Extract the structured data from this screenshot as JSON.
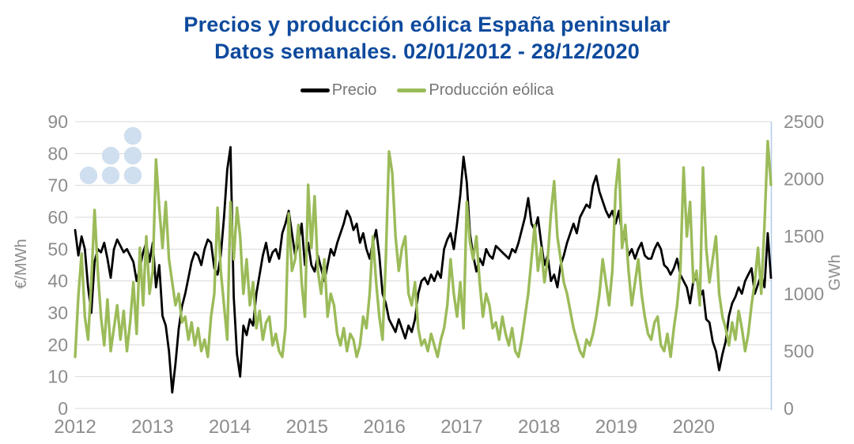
{
  "title": {
    "line1": "Precios y producción eólica España peninsular",
    "line2": "Datos semanales. 02/01/2012 - 28/12/2020"
  },
  "watermark": {
    "name": "dots-logo",
    "color": "#cfdfef",
    "rows": [
      1,
      2,
      3
    ]
  },
  "colors": {
    "title": "#0e4a9d",
    "gridline": "#d9d9d9",
    "right_axis_line": "#b7cce7",
    "tick_label": "#8c8c8c",
    "legend_text": "#767676"
  },
  "chart_data": {
    "type": "line",
    "title": "Precios y producción eólica España peninsular. Datos semanales. 02/01/2012 - 28/12/2020",
    "grid": true,
    "legend_position": "top",
    "x_ticks": [
      "2012",
      "2013",
      "2014",
      "2015",
      "2016",
      "2017",
      "2018",
      "2019",
      "2020"
    ],
    "x_range": [
      2012,
      2021
    ],
    "points_per_year": 24,
    "y_left": {
      "label": "€/MWh",
      "range": [
        0,
        90
      ],
      "ticks": [
        "0",
        "10",
        "20",
        "30",
        "40",
        "50",
        "60",
        "70",
        "80",
        "90"
      ]
    },
    "y_right": {
      "label": "GWh",
      "range": [
        0,
        2500
      ],
      "ticks": [
        "0",
        "500",
        "1000",
        "1500",
        "2000",
        "2500"
      ]
    },
    "series": [
      {
        "name": "Precio",
        "axis": "left",
        "color": "#000000",
        "width": 2.8,
        "values": [
          56,
          48,
          54,
          50,
          38,
          30,
          46,
          50,
          49,
          52,
          47,
          41,
          50,
          53,
          51,
          49,
          50,
          48,
          46,
          40,
          44,
          49,
          52,
          46,
          52,
          38,
          45,
          29,
          26,
          18,
          5,
          14,
          25,
          32,
          36,
          41,
          46,
          49,
          48,
          45,
          50,
          53,
          52,
          44,
          42,
          48,
          60,
          75,
          82,
          35,
          17,
          10,
          26,
          23,
          28,
          26,
          36,
          42,
          48,
          52,
          46,
          49,
          50,
          47,
          55,
          58,
          62,
          55,
          48,
          52,
          58,
          45,
          52,
          45,
          43,
          48,
          44,
          40,
          45,
          50,
          48,
          52,
          55,
          58,
          62,
          60,
          56,
          58,
          52,
          55,
          50,
          47,
          52,
          56,
          48,
          36,
          33,
          28,
          26,
          24,
          28,
          25,
          22,
          26,
          24,
          28,
          36,
          40,
          41,
          39,
          42,
          40,
          43,
          41,
          50,
          53,
          55,
          50,
          58,
          67,
          79,
          71,
          55,
          48,
          43,
          47,
          45,
          50,
          48,
          47,
          51,
          50,
          49,
          48,
          47,
          50,
          49,
          52,
          56,
          60,
          66,
          58,
          56,
          60,
          52,
          45,
          48,
          40,
          42,
          38,
          45,
          48,
          52,
          55,
          58,
          55,
          60,
          62,
          64,
          63,
          70,
          73,
          68,
          65,
          62,
          60,
          62,
          58,
          62,
          55,
          54,
          48,
          50,
          47,
          50,
          52,
          48,
          47,
          47,
          50,
          52,
          50,
          45,
          44,
          42,
          44,
          47,
          42,
          40,
          38,
          33,
          40,
          41,
          35,
          37,
          28,
          27,
          21,
          18,
          12,
          17,
          21,
          29,
          33,
          35,
          38,
          36,
          40,
          42,
          44,
          36,
          39,
          42,
          38,
          55,
          41
        ]
      },
      {
        "name": "Producción eólica",
        "axis": "right",
        "color": "#9bbb59",
        "width": 3.4,
        "values": [
          450,
          980,
          1350,
          800,
          600,
          1100,
          1730,
          1200,
          800,
          550,
          950,
          500,
          700,
          900,
          600,
          850,
          500,
          750,
          1100,
          650,
          1400,
          900,
          1500,
          1000,
          1200,
          2170,
          1750,
          1400,
          1800,
          1300,
          1100,
          900,
          1000,
          750,
          800,
          600,
          750,
          550,
          700,
          500,
          600,
          450,
          800,
          1000,
          1750,
          1200,
          900,
          600,
          1800,
          1300,
          1750,
          1500,
          1000,
          1300,
          900,
          1100,
          700,
          850,
          600,
          750,
          800,
          550,
          650,
          500,
          450,
          700,
          1700,
          1200,
          1300,
          1600,
          1100,
          800,
          1950,
          1400,
          1850,
          1200,
          1000,
          1300,
          800,
          1000,
          900,
          650,
          550,
          700,
          500,
          650,
          600,
          450,
          550,
          800,
          700,
          1000,
          1500,
          1100,
          800,
          600,
          1300,
          2240,
          2050,
          1500,
          1200,
          1400,
          1500,
          1000,
          900,
          1100,
          700,
          550,
          600,
          500,
          650,
          550,
          450,
          600,
          700,
          900,
          1300,
          1000,
          800,
          1100,
          700,
          1800,
          1450,
          1300,
          1500,
          1100,
          800,
          1000,
          900,
          700,
          750,
          600,
          800,
          650,
          550,
          700,
          500,
          450,
          600,
          800,
          1000,
          1300,
          1600,
          1200,
          1400,
          1100,
          1300,
          1700,
          1980,
          1500,
          1300,
          1100,
          1000,
          850,
          700,
          600,
          500,
          450,
          600,
          550,
          650,
          800,
          1000,
          1300,
          1100,
          900,
          1200,
          1900,
          2170,
          1400,
          1600,
          1200,
          900,
          1100,
          1300,
          1000,
          800,
          650,
          600,
          750,
          800,
          550,
          500,
          650,
          450,
          700,
          900,
          1200,
          2100,
          1500,
          1800,
          1100,
          1200,
          900,
          2100,
          1400,
          1100,
          1300,
          1500,
          1000,
          800,
          700,
          550,
          750,
          600,
          850,
          700,
          500,
          650,
          900,
          1100,
          1400,
          1000,
          1600,
          2330,
          1950
        ]
      }
    ]
  }
}
